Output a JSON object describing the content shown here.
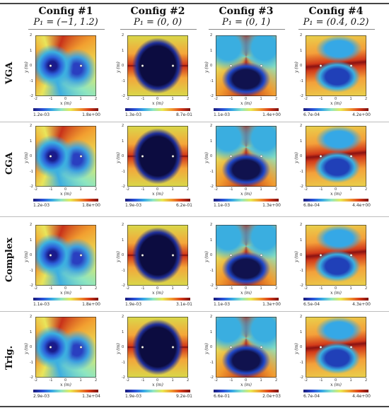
{
  "columns": [
    {
      "title": "Config #1",
      "param": "P₁ = (−1, 1.2)"
    },
    {
      "title": "Config #2",
      "param": "P₁ = (0, 0)"
    },
    {
      "title": "Config #3",
      "param": "P₁ = (0, 1)"
    },
    {
      "title": "Config #4",
      "param": "P₁ = (0.4, 0.2)"
    }
  ],
  "rows": [
    {
      "label": "VGA"
    },
    {
      "label": "CGA"
    },
    {
      "label": "Complex"
    },
    {
      "label": "Trig."
    }
  ],
  "axis": {
    "xlabel": "x (m)",
    "ylabel": "y (m)",
    "ticks": [
      "-2",
      "-1",
      "0",
      "1",
      "2"
    ]
  },
  "chart_data": {
    "type": "heatmap",
    "xlim": [
      -2,
      2
    ],
    "ylim": [
      -2,
      2
    ],
    "colormap": "jet",
    "colorbar_ranges": [
      [
        [
          "1.2e-03",
          "1.8e+00"
        ],
        [
          "1.3e-03",
          "8.7e-01"
        ],
        [
          "1.1e-03",
          "1.4e+00"
        ],
        [
          "6.7e-04",
          "4.2e+00"
        ]
      ],
      [
        [
          "1.2e-03",
          "1.8e+00"
        ],
        [
          "1.9e-03",
          "6.2e-01"
        ],
        [
          "1.1e-03",
          "1.3e+00"
        ],
        [
          "6.8e-04",
          "4.4e+00"
        ]
      ],
      [
        [
          "1.1e-03",
          "1.8e+00"
        ],
        [
          "1.9e-03",
          "3.1e-01"
        ],
        [
          "1.1e-03",
          "1.3e+00"
        ],
        [
          "6.5e-04",
          "4.3e+00"
        ]
      ],
      [
        [
          "2.9e-03",
          "1.3e+04"
        ],
        [
          "1.9e-03",
          "9.2e-01"
        ],
        [
          "6.6e-01",
          "2.0e+03"
        ],
        [
          "6.7e-04",
          "4.4e+00"
        ]
      ]
    ]
  }
}
